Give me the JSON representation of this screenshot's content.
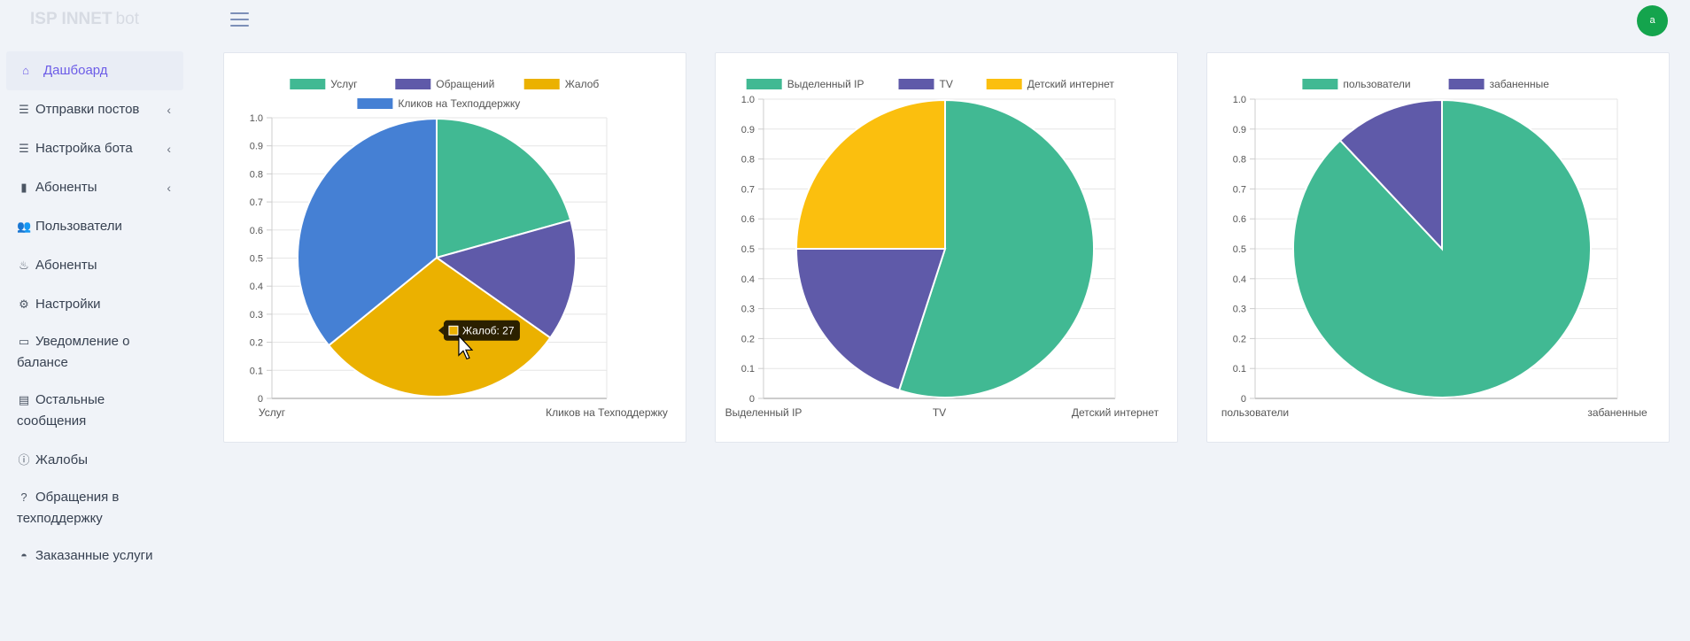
{
  "brand": {
    "name": "ISP INNET",
    "sub": "bot"
  },
  "header": {
    "avatar_initial": "a"
  },
  "sidebar": {
    "items": [
      {
        "label": "Дашбоард",
        "icon": "home-icon",
        "glyph": "⌂",
        "active": true,
        "chevron": false
      },
      {
        "label": "Отправки постов",
        "icon": "sliders-icon",
        "glyph": "☰",
        "active": false,
        "chevron": true
      },
      {
        "label": "Настройка бота",
        "icon": "sliders-icon",
        "glyph": "☰",
        "active": false,
        "chevron": true
      },
      {
        "label": "Абоненты",
        "icon": "bar-chart-icon",
        "glyph": "▮",
        "active": false,
        "chevron": true
      },
      {
        "label": "Пользователи",
        "icon": "users-icon",
        "glyph": "👥",
        "active": false,
        "chevron": false
      },
      {
        "label": "Абоненты",
        "icon": "subscribers-icon",
        "glyph": "♨",
        "active": false,
        "chevron": false
      },
      {
        "label": "Настройки",
        "icon": "gear-icon",
        "glyph": "⚙",
        "active": false,
        "chevron": false
      },
      {
        "label": "Уведомление о балансе",
        "icon": "wallet-icon",
        "glyph": "▭",
        "active": false,
        "chevron": false
      },
      {
        "label": "Остальные сообщения",
        "icon": "message-icon",
        "glyph": "▤",
        "active": false,
        "chevron": false
      },
      {
        "label": "Жалобы",
        "icon": "alert-icon",
        "glyph": "ⓘ",
        "active": false,
        "chevron": false
      },
      {
        "label": "Обращения в техподдержку",
        "icon": "support-icon",
        "glyph": "?",
        "active": false,
        "chevron": false
      },
      {
        "label": "Заказанные услуги",
        "icon": "bell-icon",
        "glyph": "◓",
        "active": false,
        "chevron": false
      }
    ]
  },
  "chart_data": [
    {
      "type": "pie",
      "categories": [
        "Услуг",
        "Обращений",
        "Жалоб",
        "Кликов на Техподдержку"
      ],
      "values": [
        19,
        13,
        27,
        33
      ],
      "colors": [
        "#41b993",
        "#5f5aa9",
        "#ebb100",
        "#4580d4"
      ],
      "yticks": [
        "0",
        "0.1",
        "0.2",
        "0.3",
        "0.4",
        "0.5",
        "0.6",
        "0.7",
        "0.8",
        "0.9",
        "1.0"
      ],
      "xticks": [
        "Услуг",
        "Кликов на Техподдержку"
      ],
      "tooltip": "Жалоб: 27",
      "legend": "top"
    },
    {
      "type": "pie",
      "categories": [
        "Выделенный IP",
        "TV",
        "Детский интернет"
      ],
      "values": [
        55,
        20,
        25
      ],
      "colors": [
        "#41b993",
        "#5f5aa9",
        "#fbbf0e"
      ],
      "yticks": [
        "0",
        "0.1",
        "0.2",
        "0.3",
        "0.4",
        "0.5",
        "0.6",
        "0.7",
        "0.8",
        "0.9",
        "1.0"
      ],
      "xticks": [
        "Выделенный IP",
        "TV",
        "Детский интернет"
      ],
      "legend": "top"
    },
    {
      "type": "pie",
      "categories": [
        "пользователи",
        "забаненные"
      ],
      "values": [
        88,
        12
      ],
      "colors": [
        "#41b993",
        "#5f5aa9"
      ],
      "yticks": [
        "0",
        "0.1",
        "0.2",
        "0.3",
        "0.4",
        "0.5",
        "0.6",
        "0.7",
        "0.8",
        "0.9",
        "1.0"
      ],
      "xticks": [
        "пользователи",
        "забаненные"
      ],
      "legend": "top"
    }
  ]
}
